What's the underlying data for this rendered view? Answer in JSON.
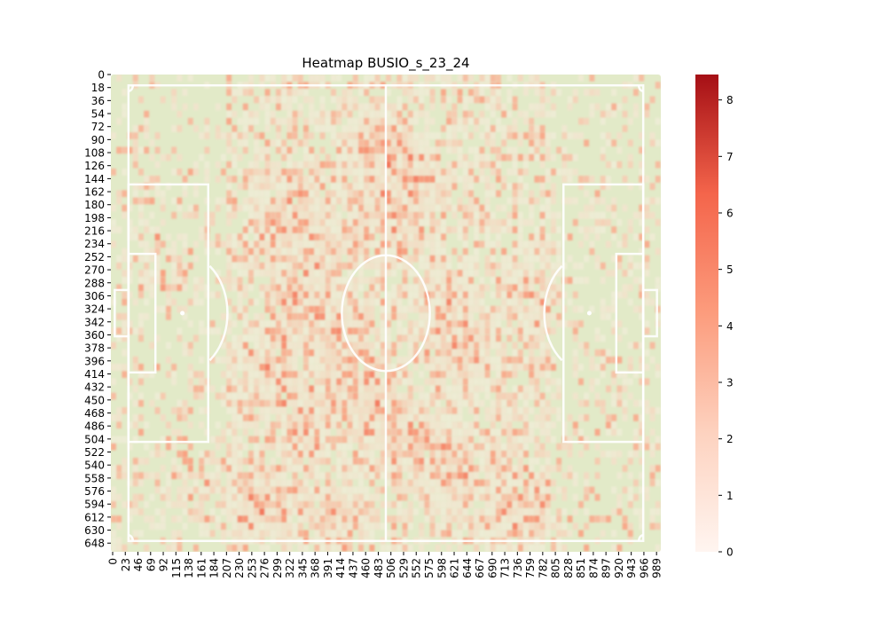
{
  "chart_data": {
    "type": "heatmap",
    "title": "Heatmap BUSIO_s_23_24",
    "x_tick_labels": [
      "0",
      "23",
      "46",
      "69",
      "92",
      "115",
      "138",
      "161",
      "184",
      "207",
      "230",
      "253",
      "276",
      "299",
      "322",
      "345",
      "368",
      "391",
      "414",
      "437",
      "460",
      "483",
      "506",
      "529",
      "552",
      "575",
      "598",
      "621",
      "644",
      "667",
      "690",
      "713",
      "736",
      "759",
      "782",
      "805",
      "828",
      "851",
      "874",
      "897",
      "920",
      "943",
      "966",
      "989"
    ],
    "y_tick_labels": [
      "0",
      "18",
      "36",
      "54",
      "72",
      "90",
      "108",
      "126",
      "144",
      "162",
      "180",
      "198",
      "216",
      "234",
      "252",
      "270",
      "288",
      "306",
      "324",
      "342",
      "360",
      "378",
      "396",
      "414",
      "432",
      "450",
      "468",
      "486",
      "504",
      "522",
      "540",
      "558",
      "576",
      "594",
      "612",
      "630",
      "648"
    ],
    "x_range": [
      0,
      1000
    ],
    "y_range": [
      0,
      660
    ],
    "grid": false,
    "colorbar": {
      "range": [
        0,
        8.45
      ],
      "ticks": [
        "0",
        "1",
        "2",
        "3",
        "4",
        "5",
        "6",
        "7",
        "8"
      ],
      "colors": [
        "#fff5f0",
        "#fdd2bf",
        "#fc9c7d",
        "#f4654b",
        "#a50f15"
      ]
    },
    "pitch": {
      "background": "#e2eac8",
      "line_color": "#ffffff"
    },
    "hot_spots": [
      {
        "x": 144,
        "y": 576,
        "value": 4
      },
      {
        "x": 304,
        "y": 195,
        "value": 5
      },
      {
        "x": 390,
        "y": 225,
        "value": 5
      },
      {
        "x": 525,
        "y": 210,
        "value": 5
      },
      {
        "x": 480,
        "y": 100,
        "value": 5
      },
      {
        "x": 530,
        "y": 135,
        "value": 6
      },
      {
        "x": 605,
        "y": 320,
        "value": 5
      },
      {
        "x": 330,
        "y": 320,
        "value": 6
      },
      {
        "x": 460,
        "y": 450,
        "value": 5
      },
      {
        "x": 340,
        "y": 470,
        "value": 5
      },
      {
        "x": 535,
        "y": 500,
        "value": 6
      },
      {
        "x": 270,
        "y": 590,
        "value": 5
      },
      {
        "x": 400,
        "y": 610,
        "value": 5
      },
      {
        "x": 620,
        "y": 540,
        "value": 5
      },
      {
        "x": 280,
        "y": 410,
        "value": 4
      },
      {
        "x": 745,
        "y": 600,
        "value": 5
      },
      {
        "x": 100,
        "y": 260,
        "value": 5
      },
      {
        "x": 770,
        "y": 300,
        "value": 4
      },
      {
        "x": 640,
        "y": 390,
        "value": 4
      },
      {
        "x": 420,
        "y": 370,
        "value": 4
      }
    ]
  }
}
